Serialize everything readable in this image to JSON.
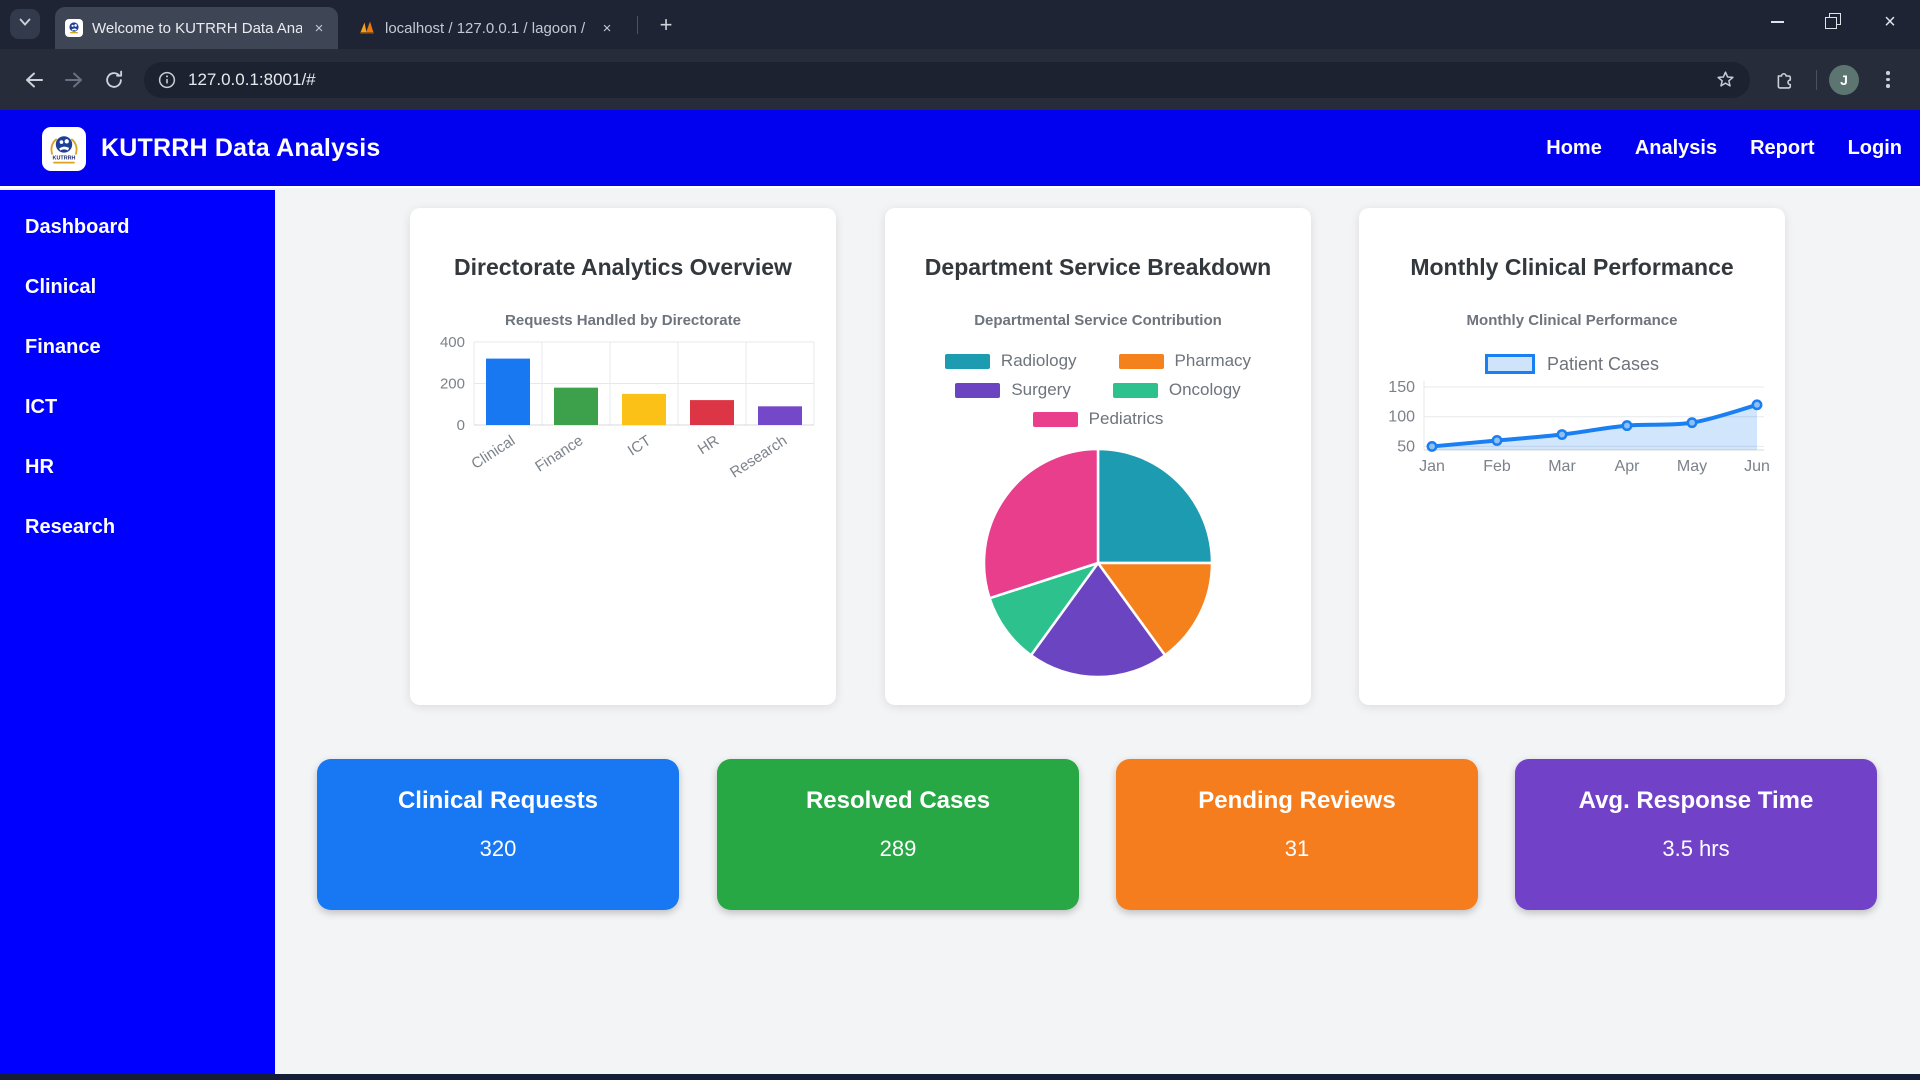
{
  "browser": {
    "tab_search_tooltip": "tab-search",
    "tabs": [
      {
        "title": "Welcome to KUTRRH Data Anal",
        "active": true
      },
      {
        "title": "localhost / 127.0.0.1 / lagoon / ",
        "active": false
      }
    ],
    "url": "127.0.0.1:8001/#",
    "profile_initial": "J"
  },
  "icons": {
    "close": "×",
    "plus": "+"
  },
  "app_header": {
    "title": "KUTRRH Data Analysis",
    "bg_color": "#0101ef",
    "nav": [
      {
        "label": "Home"
      },
      {
        "label": "Analysis"
      },
      {
        "label": "Report"
      },
      {
        "label": "Login"
      }
    ]
  },
  "sidebar": {
    "bg_color": "#0000ff",
    "items": [
      {
        "label": "Dashboard"
      },
      {
        "label": "Clinical"
      },
      {
        "label": "Finance"
      },
      {
        "label": "ICT"
      },
      {
        "label": "HR"
      },
      {
        "label": "Research"
      }
    ]
  },
  "cards": [
    {
      "title": "Directorate Analytics Overview"
    },
    {
      "title": "Department Service Breakdown"
    },
    {
      "title": "Monthly Clinical Performance"
    }
  ],
  "chart_data": [
    {
      "type": "bar",
      "title": "Requests Handled by Directorate",
      "categories": [
        "Clinical",
        "Finance",
        "ICT",
        "HR",
        "Research"
      ],
      "values": [
        320,
        180,
        150,
        120,
        90
      ],
      "colors": [
        "#1778f2",
        "#3da14c",
        "#fcc117",
        "#dc3545",
        "#7448c8"
      ],
      "ylim": [
        0,
        400
      ],
      "yticks": [
        0,
        200,
        400
      ],
      "grid": true,
      "legend": "none"
    },
    {
      "type": "pie",
      "title": "Departmental Service Contribution",
      "labels": [
        "Radiology",
        "Pharmacy",
        "Surgery",
        "Oncology",
        "Pediatrics"
      ],
      "values": [
        25,
        15,
        20,
        10,
        30
      ],
      "colors": [
        "#1d9bb0",
        "#f5811c",
        "#6b44c1",
        "#2dc18e",
        "#e83e8c"
      ],
      "legend_position": "top"
    },
    {
      "type": "line",
      "title": "Monthly Clinical Performance",
      "x": [
        "Jan",
        "Feb",
        "Mar",
        "Apr",
        "May",
        "Jun"
      ],
      "series": [
        {
          "name": "Patient Cases",
          "values": [
            50,
            60,
            70,
            85,
            90,
            120
          ]
        }
      ],
      "yticks": [
        50,
        100,
        150
      ],
      "ylim": [
        44,
        160
      ],
      "line_color": "#1a7ff2",
      "fill_color": "rgba(26,127,242,0.20)",
      "legend_position": "top",
      "grid": true
    }
  ],
  "stats": [
    {
      "label": "Clinical Requests",
      "value": "320",
      "color": "#1877f2"
    },
    {
      "label": "Resolved Cases",
      "value": "289",
      "color": "#28a745"
    },
    {
      "label": "Pending Reviews",
      "value": "31",
      "color": "#f57d1d"
    },
    {
      "label": "Avg. Response Time",
      "value": "3.5 hrs",
      "color": "#7142c8"
    }
  ]
}
